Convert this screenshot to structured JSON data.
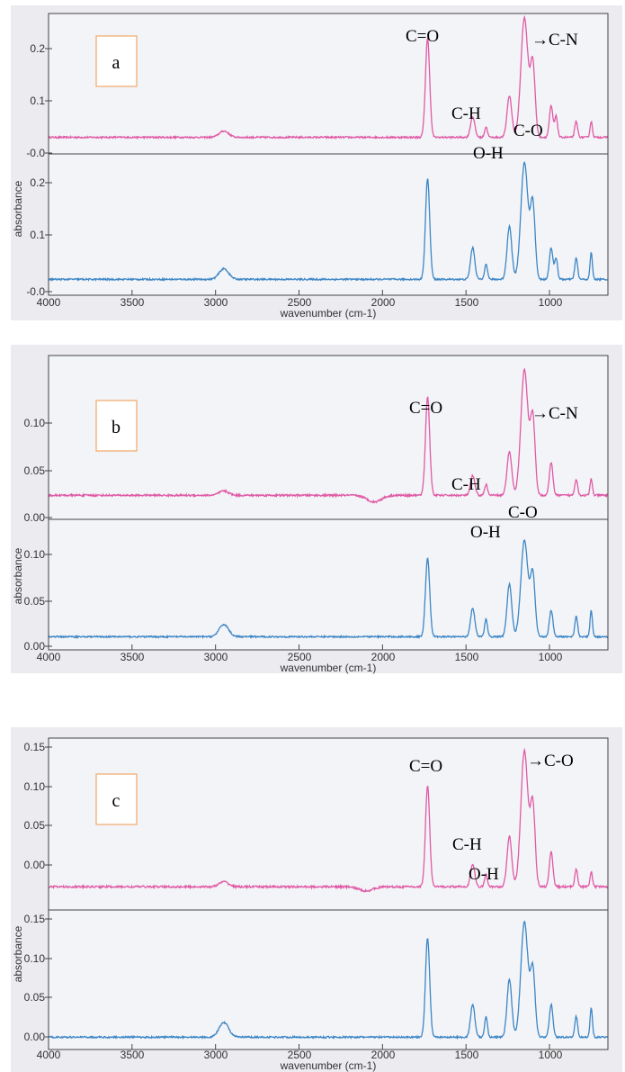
{
  "colors": {
    "series1": "#e05aa6",
    "series2": "#3d86c6"
  },
  "chart_data": [
    {
      "type": "line",
      "panel_label": "a",
      "title": "",
      "xlabel": "wavenumber (cm-1)",
      "ylabel": "absorbance",
      "x_reversed": true,
      "xlim": [
        4000,
        650
      ],
      "x_ticks": [
        4000,
        3500,
        3000,
        2500,
        2000,
        1500,
        1000
      ],
      "top_ylim": [
        -0.02,
        0.24
      ],
      "top_ticks": [
        "0.2",
        "0.1",
        "-0.0"
      ],
      "top_tick_values": [
        0.2,
        0.1,
        0.0
      ],
      "bottom_ylim": [
        -0.02,
        0.24
      ],
      "bottom_ticks": [
        "0.2",
        "0.1",
        "-0.0"
      ],
      "bottom_tick_values": [
        0.2,
        0.1,
        0.0
      ],
      "series": [
        {
          "color": "#e05aa6",
          "baseline": 0.012,
          "peaks": [
            [
              2950,
              0.012,
              40
            ],
            [
              1730,
              0.19,
              18
            ],
            [
              1460,
              0.04,
              18
            ],
            [
              1380,
              0.02,
              12
            ],
            [
              1240,
              0.08,
              20
            ],
            [
              1150,
              0.23,
              30
            ],
            [
              1100,
              0.14,
              20
            ],
            [
              990,
              0.06,
              15
            ],
            [
              960,
              0.04,
              12
            ],
            [
              840,
              0.03,
              12
            ],
            [
              750,
              0.03,
              10
            ]
          ]
        },
        {
          "color": "#3d86c6",
          "baseline": 0.01,
          "peaks": [
            [
              2950,
              0.02,
              40
            ],
            [
              1730,
              0.19,
              18
            ],
            [
              1460,
              0.06,
              18
            ],
            [
              1380,
              0.03,
              12
            ],
            [
              1240,
              0.1,
              20
            ],
            [
              1150,
              0.22,
              30
            ],
            [
              1100,
              0.14,
              20
            ],
            [
              990,
              0.06,
              15
            ],
            [
              960,
              0.04,
              12
            ],
            [
              840,
              0.04,
              12
            ],
            [
              750,
              0.05,
              10
            ]
          ]
        }
      ],
      "annotations": [
        "C=O",
        "→C-N",
        "C-H",
        "C-O",
        "O-H"
      ]
    },
    {
      "type": "line",
      "panel_label": "b",
      "title": "",
      "xlabel": "wavenumber (cm-1)",
      "ylabel": "absorbance",
      "x_reversed": true,
      "xlim": [
        4000,
        650
      ],
      "x_ticks": [
        4000,
        3500,
        3000,
        2500,
        2000,
        1500,
        1000
      ],
      "top_ylim": [
        -0.01,
        0.135
      ],
      "top_ticks": [
        "0.10",
        "0.05",
        "0.00"
      ],
      "top_tick_values": [
        0.1,
        0.05,
        0.0
      ],
      "bottom_ylim": [
        -0.01,
        0.135
      ],
      "bottom_ticks": [
        "0.10",
        "0.05",
        "0.00"
      ],
      "bottom_tick_values": [
        0.1,
        0.05,
        0.0
      ],
      "series": [
        {
          "color": "#e05aa6",
          "baseline": 0.012,
          "peaks": [
            [
              2950,
              0.004,
              40
            ],
            [
              2050,
              -0.006,
              60
            ],
            [
              1730,
              0.09,
              18
            ],
            [
              1460,
              0.018,
              18
            ],
            [
              1380,
              0.01,
              12
            ],
            [
              1240,
              0.04,
              20
            ],
            [
              1150,
              0.115,
              30
            ],
            [
              1100,
              0.07,
              20
            ],
            [
              990,
              0.03,
              15
            ],
            [
              840,
              0.015,
              12
            ],
            [
              750,
              0.015,
              10
            ]
          ]
        },
        {
          "color": "#3d86c6",
          "baseline": 0.005,
          "peaks": [
            [
              2950,
              0.014,
              40
            ],
            [
              1730,
              0.09,
              18
            ],
            [
              1460,
              0.033,
              18
            ],
            [
              1380,
              0.02,
              12
            ],
            [
              1240,
              0.06,
              20
            ],
            [
              1150,
              0.11,
              30
            ],
            [
              1100,
              0.07,
              20
            ],
            [
              990,
              0.03,
              15
            ],
            [
              840,
              0.023,
              12
            ],
            [
              750,
              0.03,
              10
            ]
          ]
        }
      ],
      "annotations": [
        "C=O",
        "→C-N",
        "C-H",
        "C-O",
        "O-H"
      ]
    },
    {
      "type": "line",
      "panel_label": "c",
      "title": "",
      "xlabel": "wavenumber (cm-1)",
      "ylabel": "absorbance",
      "x_reversed": true,
      "xlim": [
        4000,
        650
      ],
      "x_ticks": [
        4000,
        3500,
        3000,
        2500,
        2000,
        1500,
        1000
      ],
      "top_ylim": [
        -0.01,
        0.155
      ],
      "top_ticks": [
        "0.15",
        "0.10",
        "0.05",
        "0.00"
      ],
      "top_tick_values": [
        0.15,
        0.1,
        0.05,
        0.0
      ],
      "bottom_ylim": [
        -0.01,
        0.155
      ],
      "bottom_ticks": [
        "0.15",
        "0.10",
        "0.05",
        "0.00"
      ],
      "bottom_tick_values": [
        0.15,
        0.1,
        0.05,
        0.0
      ],
      "series": [
        {
          "color": "#e05aa6",
          "baseline": 0.013,
          "peaks": [
            [
              2950,
              0.005,
              40
            ],
            [
              2100,
              -0.004,
              60
            ],
            [
              1730,
              0.1,
              18
            ],
            [
              1460,
              0.022,
              18
            ],
            [
              1380,
              0.012,
              12
            ],
            [
              1240,
              0.05,
              20
            ],
            [
              1150,
              0.135,
              30
            ],
            [
              1100,
              0.08,
              20
            ],
            [
              990,
              0.035,
              15
            ],
            [
              840,
              0.018,
              12
            ],
            [
              750,
              0.015,
              10
            ]
          ]
        },
        {
          "color": "#3d86c6",
          "baseline": 0.005,
          "peaks": [
            [
              2950,
              0.018,
              40
            ],
            [
              1730,
              0.12,
              18
            ],
            [
              1460,
              0.04,
              18
            ],
            [
              1380,
              0.025,
              12
            ],
            [
              1240,
              0.07,
              20
            ],
            [
              1150,
              0.14,
              30
            ],
            [
              1100,
              0.08,
              20
            ],
            [
              990,
              0.04,
              15
            ],
            [
              840,
              0.025,
              12
            ],
            [
              750,
              0.035,
              10
            ]
          ]
        }
      ],
      "annotations": [
        "C=O",
        "→C-O",
        "C-H",
        "O-H"
      ]
    }
  ]
}
